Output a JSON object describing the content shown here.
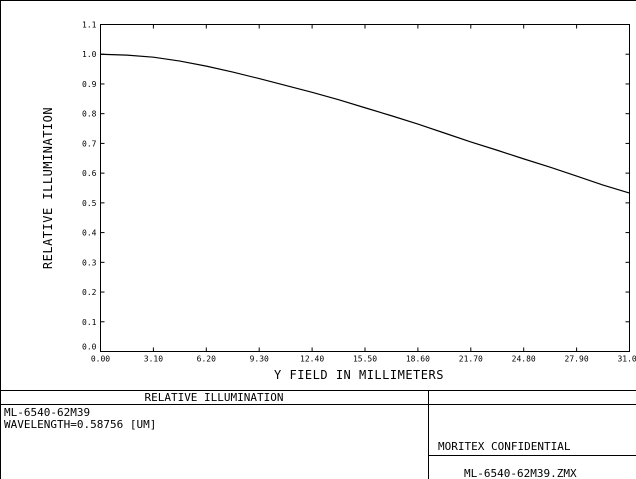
{
  "chart_data": {
    "type": "line",
    "title": "",
    "xlabel": "Y FIELD IN MILLIMETERS",
    "ylabel": "RELATIVE ILLUMINATION",
    "xlim": [
      0.0,
      31.0
    ],
    "ylim": [
      0.0,
      1.1
    ],
    "x_ticks": [
      "0.00",
      "3.10",
      "6.20",
      "9.30",
      "12.40",
      "15.50",
      "18.60",
      "21.70",
      "24.80",
      "27.90",
      "31.00"
    ],
    "y_ticks": [
      "0.0",
      "0.1",
      "0.2",
      "0.3",
      "0.4",
      "0.5",
      "0.6",
      "0.7",
      "0.8",
      "0.9",
      "1.0",
      "1.1"
    ],
    "grid": false,
    "line_color": "#000000",
    "series": [
      {
        "name": "",
        "x": [
          0,
          1.55,
          3.1,
          4.65,
          6.2,
          7.75,
          9.3,
          10.85,
          12.4,
          13.95,
          15.5,
          17.05,
          18.6,
          20.15,
          21.7,
          23.25,
          24.8,
          26.35,
          27.9,
          29.45,
          31.0
        ],
        "y": [
          1.0,
          0.997,
          0.99,
          0.977,
          0.96,
          0.94,
          0.918,
          0.895,
          0.872,
          0.847,
          0.82,
          0.793,
          0.765,
          0.735,
          0.705,
          0.677,
          0.648,
          0.62,
          0.59,
          0.56,
          0.533
        ]
      }
    ]
  },
  "info_panel": {
    "title": "RELATIVE ILLUMINATION",
    "lens_name": "ML-6540-62M39",
    "wavelength": "WAVELENGTH=0.58756 [UM]",
    "confidential": "MORITEX CONFIDENTIAL",
    "file_name": "ML-6540-62M39.ZMX"
  }
}
